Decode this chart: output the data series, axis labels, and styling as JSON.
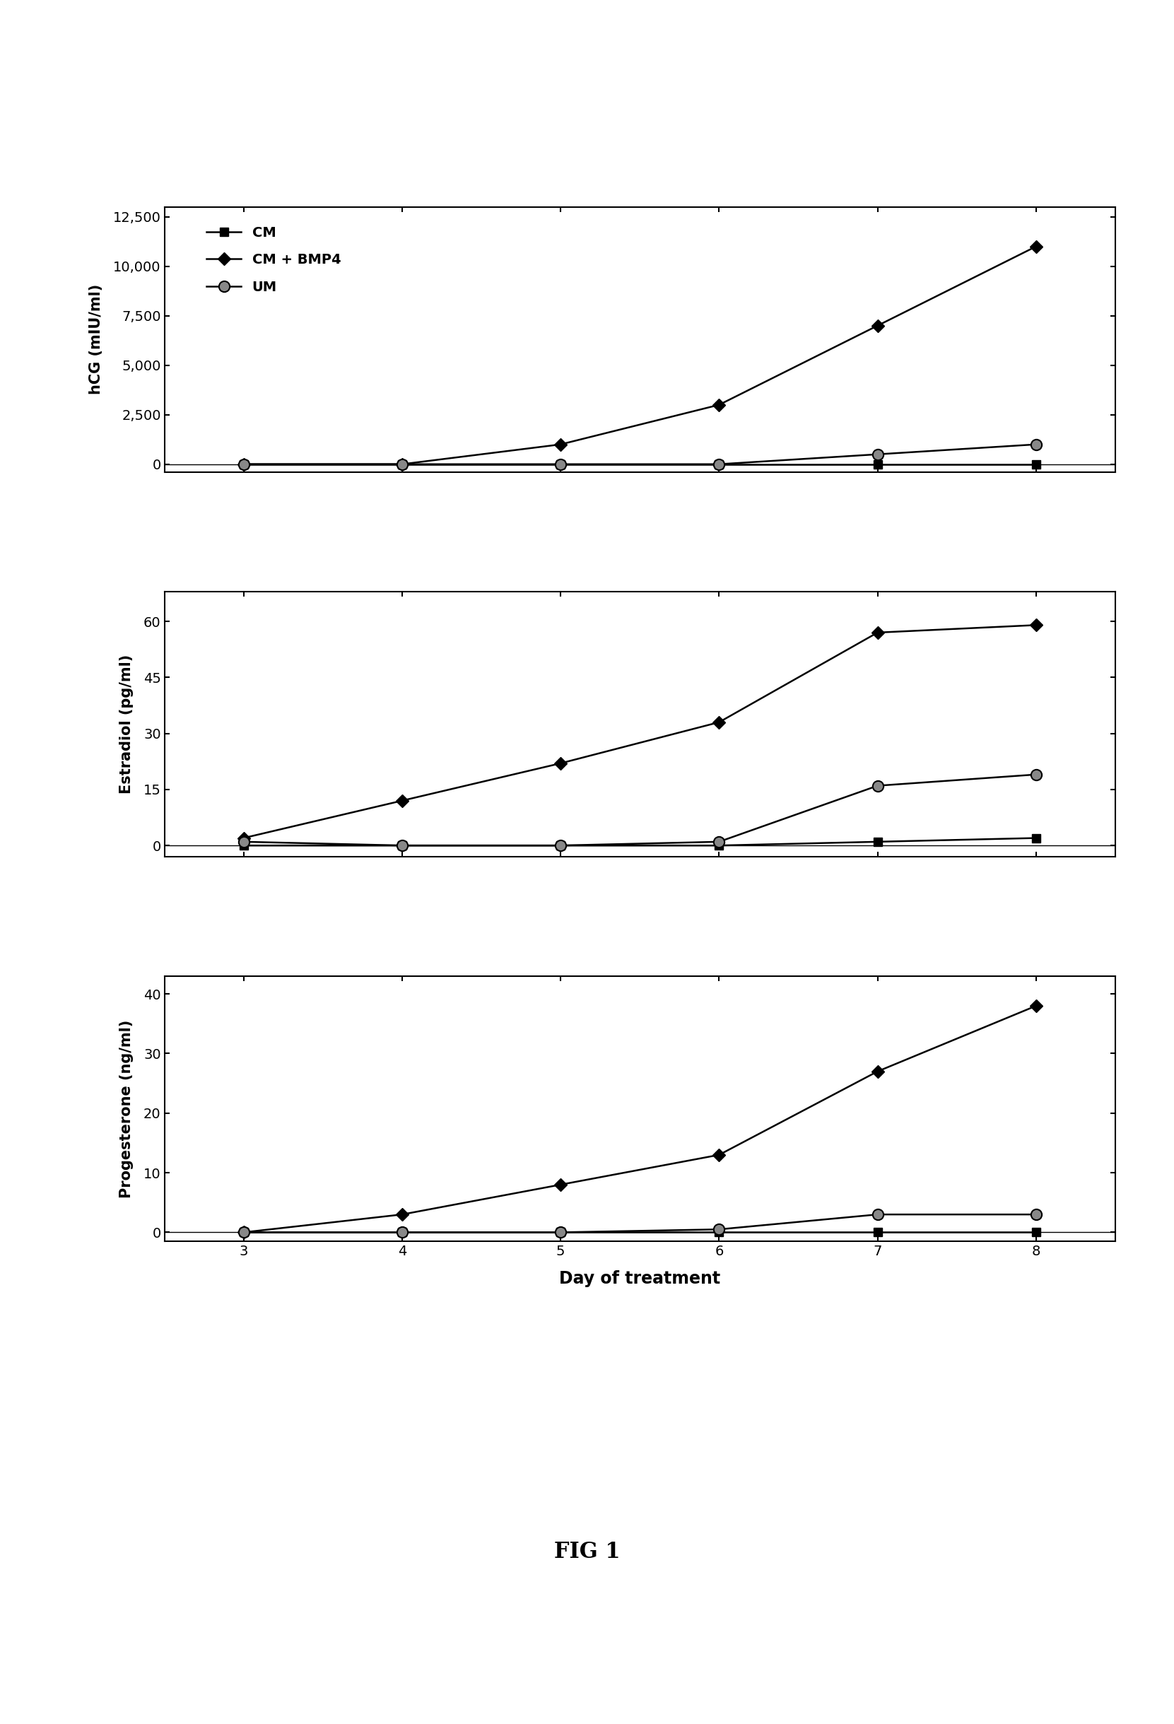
{
  "days": [
    3,
    4,
    5,
    6,
    7,
    8
  ],
  "hcg": {
    "CM": [
      0,
      0,
      0,
      0,
      0,
      0
    ],
    "CM_BMP4": [
      0,
      0,
      1000,
      3000,
      7000,
      11000
    ],
    "UM": [
      0,
      0,
      0,
      0,
      500,
      1000
    ]
  },
  "estradiol": {
    "CM": [
      0,
      0,
      0,
      0,
      1,
      2
    ],
    "CM_BMP4": [
      2,
      12,
      22,
      33,
      57,
      59
    ],
    "UM": [
      1,
      0,
      0,
      1,
      16,
      19
    ]
  },
  "progesterone": {
    "CM": [
      0,
      0,
      0,
      0,
      0,
      0
    ],
    "CM_BMP4": [
      0,
      3,
      8,
      13,
      27,
      38
    ],
    "UM": [
      0,
      0,
      0,
      0.5,
      3,
      3
    ]
  },
  "hcg_yticks": [
    0,
    2500,
    5000,
    7500,
    10000,
    12500
  ],
  "hcg_ylim": [
    -400,
    13000
  ],
  "estradiol_yticks": [
    0,
    15,
    30,
    45,
    60
  ],
  "estradiol_ylim": [
    -3,
    68
  ],
  "progesterone_yticks": [
    0,
    10,
    20,
    30,
    40
  ],
  "progesterone_ylim": [
    -1.5,
    43
  ],
  "xlabel": "Day of treatment",
  "ylabel_hcg": "hCG (mIU/ml)",
  "ylabel_estradiol": "Estradiol (pg/ml)",
  "ylabel_progesterone": "Progesterone (ng/ml)",
  "legend_labels": [
    "CM",
    "CM + BMP4",
    "UM"
  ],
  "fig_title": "FIG 1",
  "background_color": "#ffffff",
  "linewidth": 1.8,
  "markersize_square": 8,
  "markersize_diamond": 9,
  "markersize_circle": 11
}
